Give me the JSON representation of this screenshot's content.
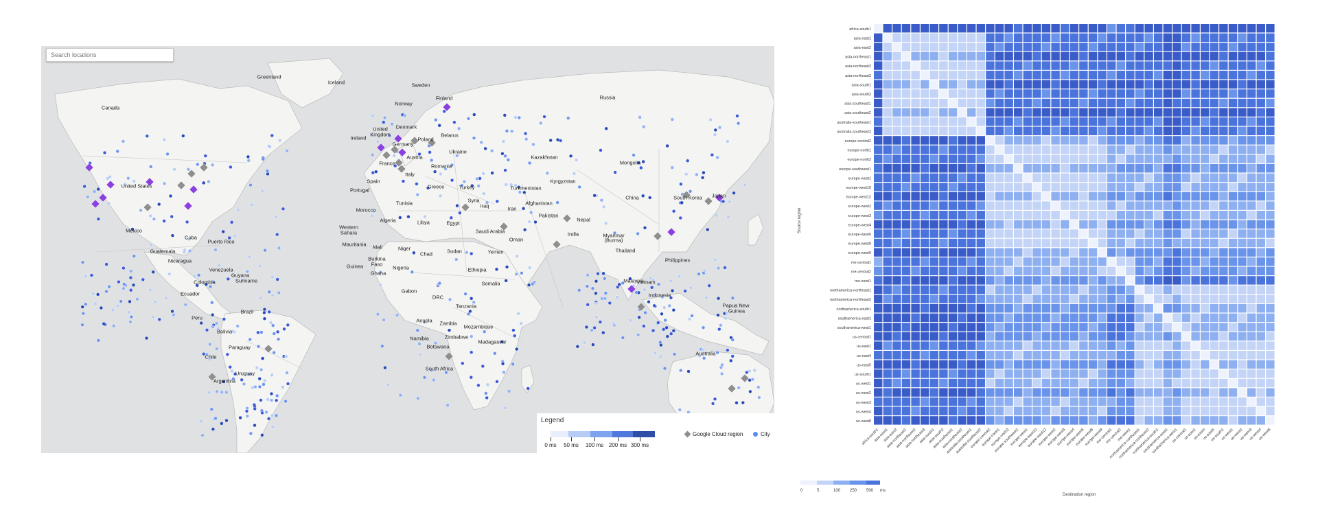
{
  "search": {
    "placeholder": "Search locations"
  },
  "map": {
    "countries": [
      [
        "Greenland",
        392,
        112
      ],
      [
        "Iceland",
        490,
        120
      ],
      [
        "Sweden",
        613,
        124
      ],
      [
        "Finland",
        647,
        143
      ],
      [
        "Russia",
        885,
        142
      ],
      [
        "Norway",
        588,
        151
      ],
      [
        "Canada",
        161,
        157
      ],
      [
        "United",
        554,
        188
      ],
      [
        "Kingdom",
        554,
        196
      ],
      [
        "Denmark",
        592,
        185
      ],
      [
        "Belarus",
        655,
        197
      ],
      [
        "Poland",
        620,
        203
      ],
      [
        "Ireland",
        522,
        201
      ],
      [
        "Germany",
        587,
        210
      ],
      [
        "Ukraine",
        667,
        221
      ],
      [
        "Austria",
        604,
        229
      ],
      [
        "France",
        564,
        238
      ],
      [
        "Romania",
        643,
        242
      ],
      [
        "Kazakhstan",
        793,
        229
      ],
      [
        "Mongolia",
        918,
        237
      ],
      [
        "Italy",
        597,
        254
      ],
      [
        "Spain",
        544,
        264
      ],
      [
        "United States",
        199,
        271
      ],
      [
        "Greece",
        635,
        272
      ],
      [
        "Turkey",
        680,
        273
      ],
      [
        "Turkmenistan",
        766,
        274
      ],
      [
        "Kyrgyzstan",
        820,
        264
      ],
      [
        "Portugal",
        524,
        277
      ],
      [
        "China",
        921,
        288
      ],
      [
        "South Korea",
        1002,
        288
      ],
      [
        "Japan",
        1047,
        285
      ],
      [
        "Tunisia",
        589,
        296
      ],
      [
        "Syria",
        690,
        292
      ],
      [
        "Iraq",
        706,
        300
      ],
      [
        "Afghanistan",
        785,
        296
      ],
      [
        "Iran",
        746,
        304
      ],
      [
        "Morocco",
        533,
        306
      ],
      [
        "Algeria",
        565,
        321
      ],
      [
        "Libya",
        617,
        324
      ],
      [
        "Egypt",
        660,
        325
      ],
      [
        "Pakistan",
        799,
        314
      ],
      [
        "Nepal",
        850,
        320
      ],
      [
        "Mexico",
        195,
        336
      ],
      [
        "Western",
        508,
        331
      ],
      [
        "Sahara",
        508,
        339
      ],
      [
        "Saudi Arabia",
        714,
        337
      ],
      [
        "India",
        835,
        341
      ],
      [
        "Myanmar",
        894,
        343
      ],
      [
        "(Burma)",
        894,
        350
      ],
      [
        "Cuba",
        278,
        346
      ],
      [
        "Puerto Rico",
        322,
        352
      ],
      [
        "Mauritania",
        516,
        356
      ],
      [
        "Mali",
        550,
        360
      ],
      [
        "Niger",
        589,
        362
      ],
      [
        "Chad",
        621,
        370
      ],
      [
        "Sudan",
        662,
        366
      ],
      [
        "Oman",
        752,
        349
      ],
      [
        "Yemen",
        722,
        367
      ],
      [
        "Thailand",
        911,
        365
      ],
      [
        "Philippines",
        987,
        379
      ],
      [
        "Guatemala",
        237,
        366
      ],
      [
        "Nicaragua",
        262,
        380
      ],
      [
        "Burkina",
        549,
        377
      ],
      [
        "Faso",
        549,
        385
      ],
      [
        "Guinea",
        517,
        388
      ],
      [
        "Nigeria",
        584,
        390
      ],
      [
        "Ghana",
        551,
        398
      ],
      [
        "Ethiopia",
        695,
        393
      ],
      [
        "Vietnam",
        941,
        411
      ],
      [
        "Venezuela",
        322,
        393
      ],
      [
        "Guyana",
        350,
        401
      ],
      [
        "Suriname",
        359,
        409
      ],
      [
        "Colombia",
        298,
        411
      ],
      [
        "Somalia",
        715,
        413
      ],
      [
        "Malaysia",
        923,
        409
      ],
      [
        "Ecuador",
        277,
        428
      ],
      [
        "Gabon",
        596,
        424
      ],
      [
        "DRC",
        638,
        433
      ],
      [
        "Tanzania",
        679,
        446
      ],
      [
        "Indonesia",
        961,
        430
      ],
      [
        "Papua New",
        1072,
        445
      ],
      [
        "Guinea",
        1073,
        453
      ],
      [
        "Brazil",
        360,
        454
      ],
      [
        "Peru",
        287,
        463
      ],
      [
        "Angola",
        618,
        467
      ],
      [
        "Zambia",
        653,
        471
      ],
      [
        "Mozambique",
        697,
        476
      ],
      [
        "Bolivia",
        327,
        483
      ],
      [
        "Namibia",
        611,
        493
      ],
      [
        "Zimbabwe",
        665,
        491
      ],
      [
        "Madagascar",
        717,
        498
      ],
      [
        "Paraguay",
        349,
        506
      ],
      [
        "Botswana",
        638,
        505
      ],
      [
        "Australia",
        1028,
        515
      ],
      [
        "Chile",
        307,
        520
      ],
      [
        "South Africa",
        640,
        537
      ],
      [
        "Uruguay",
        357,
        544
      ],
      [
        "Argentina",
        327,
        555
      ]
    ],
    "regions": [
      [
        130,
        244,
        "#8a41e0"
      ],
      [
        161,
        269,
        "#8a41e0"
      ],
      [
        218,
        265,
        "#8a41e0"
      ],
      [
        150,
        288,
        "#8a41e0"
      ],
      [
        139,
        297,
        "#8a41e0"
      ],
      [
        274,
        300,
        "#8a41e0"
      ],
      [
        282,
        276,
        "#8a41e0"
      ],
      [
        264,
        270,
        "#8f8f8f"
      ],
      [
        279,
        253,
        "#8f8f8f"
      ],
      [
        297,
        244,
        "#8f8f8f"
      ],
      [
        215,
        302,
        "#8f8f8f"
      ],
      [
        555,
        215,
        "#8a41e0"
      ],
      [
        580,
        202,
        "#8a41e0"
      ],
      [
        563,
        226,
        "#8f8f8f"
      ],
      [
        575,
        218,
        "#8f8f8f"
      ],
      [
        586,
        222,
        "#8a41e0"
      ],
      [
        581,
        237,
        "#8f8f8f"
      ],
      [
        585,
        246,
        "#8f8f8f"
      ],
      [
        604,
        205,
        "#8f8f8f"
      ],
      [
        629,
        208,
        "#8f8f8f"
      ],
      [
        651,
        156,
        "#8a41e0"
      ],
      [
        678,
        302,
        "#8f8f8f"
      ],
      [
        734,
        330,
        "#8f8f8f"
      ],
      [
        826,
        318,
        "#8f8f8f"
      ],
      [
        811,
        356,
        "#8f8f8f"
      ],
      [
        958,
        344,
        "#8f8f8f"
      ],
      [
        978,
        338,
        "#8a41e0"
      ],
      [
        1048,
        288,
        "#8a41e0"
      ],
      [
        1032,
        293,
        "#8f8f8f"
      ],
      [
        1000,
        284,
        "#8f8f8f"
      ],
      [
        920,
        421,
        "#8a41e0"
      ],
      [
        934,
        447,
        "#8f8f8f"
      ],
      [
        391,
        508,
        "#8f8f8f"
      ],
      [
        309,
        549,
        "#8f8f8f"
      ],
      [
        654,
        519,
        "#8f8f8f"
      ],
      [
        1066,
        566,
        "#8f8f8f"
      ],
      [
        1085,
        551,
        "#8f8f8f"
      ]
    ]
  },
  "legend": {
    "title": "Legend",
    "scale_labels": [
      "0 ms",
      "50 ms",
      "100 ms",
      "200 ms",
      "300 ms"
    ],
    "scale_colors": [
      "#e8eefb",
      "#b6cbf6",
      "#7ea4f0",
      "#4f79dc",
      "#2f4ea8"
    ],
    "region_label": "Google Cloud region",
    "city_label": "City"
  },
  "heatmap": {
    "regions": [
      "africa-south1",
      "asia-east1",
      "asia-east2",
      "asia-northeast1",
      "asia-northeast2",
      "asia-northeast3",
      "asia-south1",
      "asia-south2",
      "asia-southeast1",
      "asia-southeast2",
      "australia-southeast1",
      "australia-southeast2",
      "europe-central2",
      "europe-north1",
      "europe-north2",
      "europe-southwest1",
      "europe-west1",
      "europe-west10",
      "europe-west12",
      "europe-west2",
      "europe-west3",
      "europe-west4",
      "europe-west6",
      "europe-west8",
      "europe-west9",
      "me-central1",
      "me-central2",
      "me-west1",
      "northamerica-northeast1",
      "northamerica-northeast2",
      "northamerica-south1",
      "southamerica-east1",
      "southamerica-west1",
      "us-central1",
      "us-east1",
      "us-east4",
      "us-east5",
      "us-south1",
      "us-west1",
      "us-west2",
      "us-west3",
      "us-west4",
      "us-west8"
    ],
    "x_title": "Destination region",
    "y_title": "Source region",
    "scale_labels": [
      "0",
      "5",
      "100",
      "250",
      "500",
      "ms"
    ]
  }
}
